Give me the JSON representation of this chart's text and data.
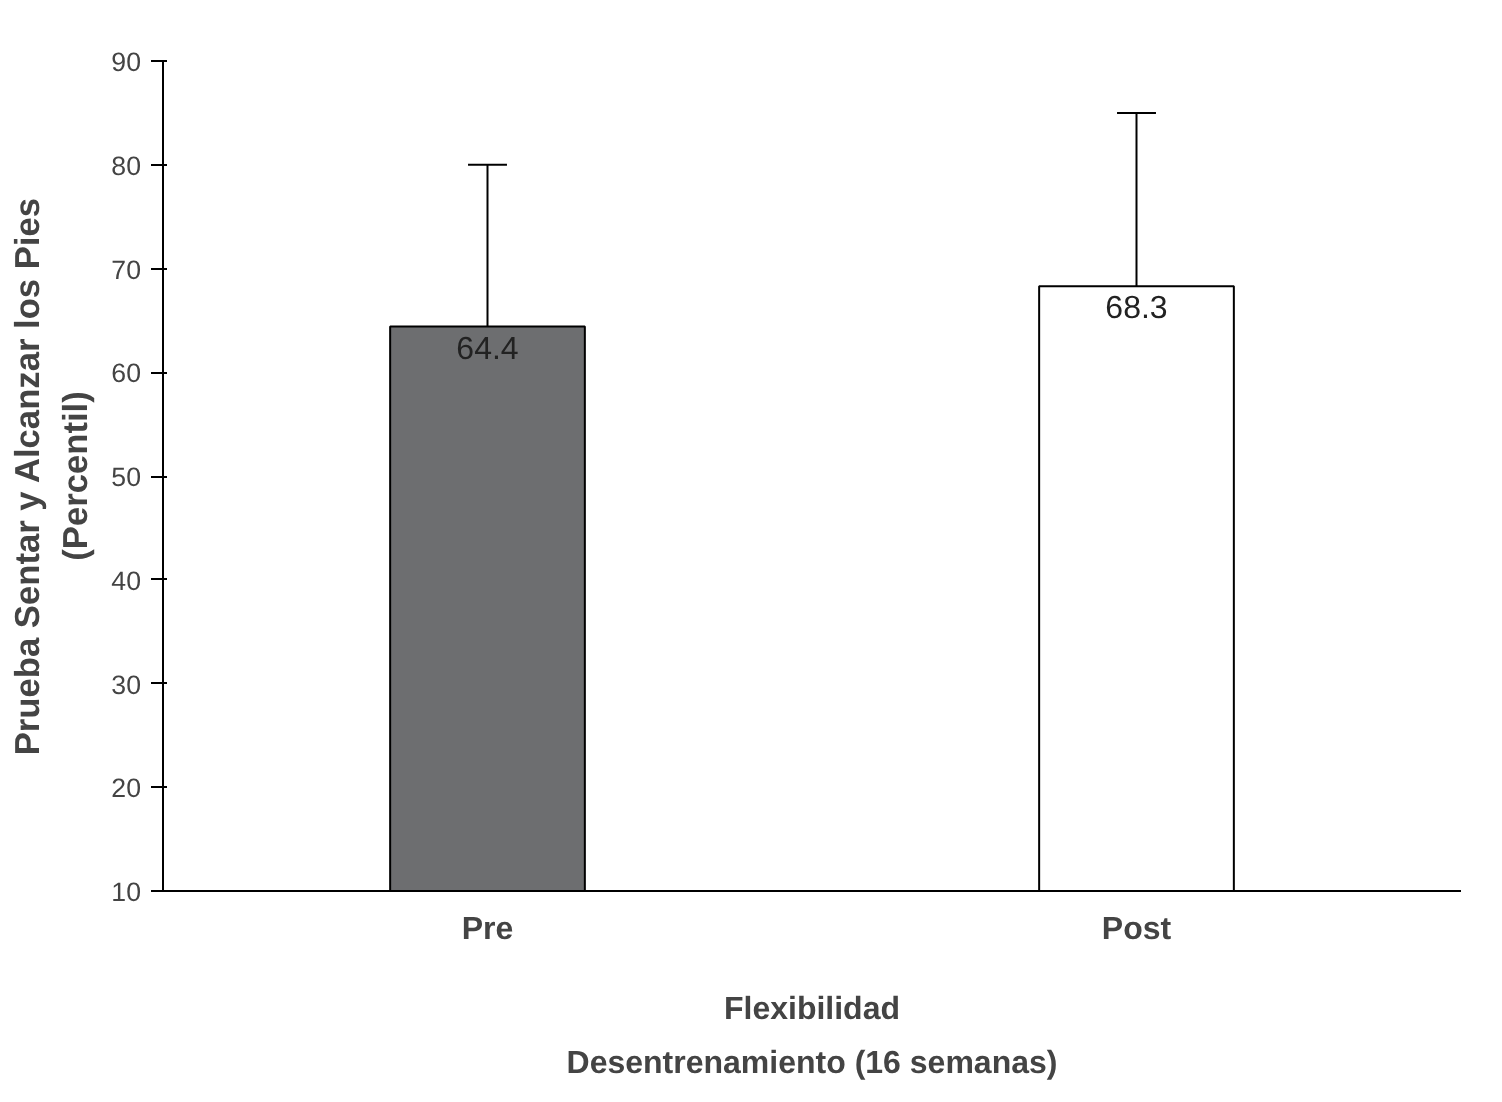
{
  "chart_data": {
    "type": "bar",
    "categories": [
      "Pre",
      "Post"
    ],
    "values": [
      64.4,
      68.3
    ],
    "colors": [
      "#6d6e70",
      "#ffffff"
    ],
    "errors": [
      [
        64.4,
        80
      ],
      [
        68.3,
        85
      ]
    ],
    "data_labels": true,
    "ylim": [
      10,
      90
    ],
    "yticks": [
      10,
      20,
      30,
      40,
      50,
      60,
      70,
      80,
      90
    ],
    "ylabel": "Prueba Sentar y Alcanzar los Pies\n(Percentil)",
    "xlabel": "Flexibilidad",
    "annotations": [
      "Desentrenamiento (16 semanas)"
    ],
    "grid": false
  }
}
